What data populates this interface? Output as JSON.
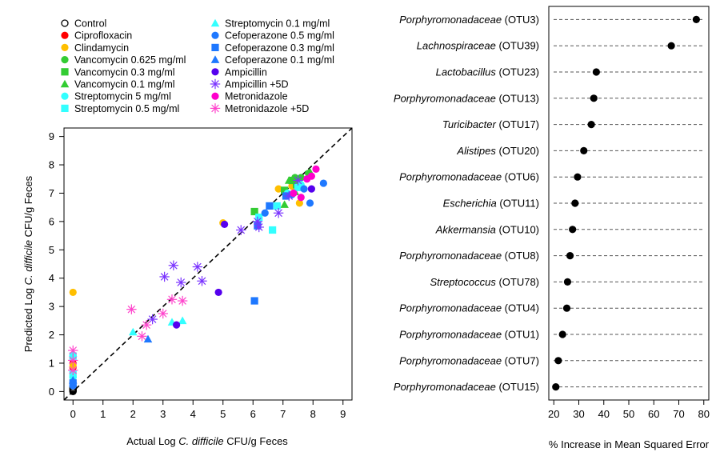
{
  "chart_data": [
    {
      "type": "scatter",
      "xlabel": {
        "pre": "Actual Log ",
        "italic": "C. difficile",
        "post": " CFU/g Feces"
      },
      "ylabel": {
        "pre": "Predicted Log ",
        "italic": "C. difficile",
        "post": " CFU/g Feces"
      },
      "xlim": [
        -0.3,
        9.3
      ],
      "ylim": [
        -0.3,
        9.3
      ],
      "xticks": [
        "0",
        "1",
        "2",
        "3",
        "4",
        "5",
        "6",
        "7",
        "8",
        "9"
      ],
      "yticks": [
        "0",
        "1",
        "2",
        "3",
        "4",
        "5",
        "6",
        "7",
        "8",
        "9"
      ],
      "reference_line": "y = x (dashed)",
      "legend_position": "top-left, outside plot, two columns",
      "series": [
        {
          "name": "Control",
          "color": "#000000",
          "marker": "open-circle",
          "points": [
            [
              0,
              0
            ],
            [
              0,
              0.05
            ],
            [
              0,
              0.1
            ],
            [
              0,
              0.15
            ],
            [
              0,
              0.02
            ],
            [
              0,
              0.08
            ]
          ]
        },
        {
          "name": "Ciprofloxacin",
          "color": "#ff0000",
          "marker": "circle",
          "points": [
            [
              0,
              1.0
            ],
            [
              0,
              0.85
            ]
          ]
        },
        {
          "name": "Clindamycin",
          "color": "#ffbf00",
          "marker": "circle",
          "points": [
            [
              0,
              3.5
            ],
            [
              5,
              5.95
            ],
            [
              6.85,
              7.15
            ],
            [
              7.3,
              7.25
            ],
            [
              7.55,
              6.65
            ],
            [
              0,
              0.9
            ]
          ]
        },
        {
          "name": "Vancomycin 0.625 mg/ml",
          "color": "#33cc33",
          "marker": "circle",
          "points": [
            [
              7.4,
              7.55
            ],
            [
              7.6,
              7.55
            ],
            [
              7.85,
              7.7
            ],
            [
              7.5,
              7.35
            ]
          ]
        },
        {
          "name": "Vancomycin 0.3 mg/ml",
          "color": "#33cc33",
          "marker": "square",
          "points": [
            [
              6.05,
              6.35
            ],
            [
              7.05,
              7.1
            ],
            [
              7.3,
              7.45
            ],
            [
              7.45,
              7.3
            ]
          ]
        },
        {
          "name": "Vancomycin 0.1 mg/ml",
          "color": "#33cc33",
          "marker": "triangle",
          "points": [
            [
              7.05,
              6.6
            ],
            [
              7.4,
              7.05
            ],
            [
              7.9,
              7.75
            ],
            [
              7.2,
              7.45
            ]
          ]
        },
        {
          "name": "Streptomycin 5 mg/ml",
          "color": "#33ffff",
          "marker": "circle",
          "points": [
            [
              7.15,
              7.0
            ],
            [
              7.6,
              7.3
            ],
            [
              0,
              0.5
            ]
          ]
        },
        {
          "name": "Streptomycin 0.5 mg/ml",
          "color": "#33ffff",
          "marker": "square",
          "points": [
            [
              6.2,
              6.15
            ],
            [
              6.65,
              5.7
            ],
            [
              7.5,
              7.2
            ],
            [
              6.8,
              6.55
            ],
            [
              0,
              1.25
            ],
            [
              0,
              0.6
            ]
          ]
        },
        {
          "name": "Streptomycin 0.1 mg/ml",
          "color": "#33ffff",
          "marker": "triangle",
          "points": [
            [
              2.0,
              2.1
            ],
            [
              3.3,
              2.45
            ],
            [
              3.65,
              2.5
            ],
            [
              0,
              1.35
            ]
          ]
        },
        {
          "name": "Cefoperazone 0.5 mg/ml",
          "color": "#1e78ff",
          "marker": "circle",
          "points": [
            [
              8.35,
              7.35
            ],
            [
              7.9,
              6.65
            ],
            [
              7.3,
              6.95
            ],
            [
              6.4,
              6.3
            ],
            [
              7.7,
              7.15
            ],
            [
              0,
              0.2
            ]
          ]
        },
        {
          "name": "Cefoperazone 0.3 mg/ml",
          "color": "#1e78ff",
          "marker": "square",
          "points": [
            [
              6.05,
              3.2
            ],
            [
              6.15,
              5.85
            ],
            [
              6.55,
              6.55
            ],
            [
              7.1,
              6.9
            ],
            [
              0,
              0.3
            ]
          ]
        },
        {
          "name": "Cefoperazone 0.1 mg/ml",
          "color": "#1e78ff",
          "marker": "triangle",
          "points": [
            [
              2.5,
              1.85
            ],
            [
              0,
              0.4
            ]
          ]
        },
        {
          "name": "Ampicillin",
          "color": "#5500ee",
          "marker": "circle",
          "points": [
            [
              3.45,
              2.35
            ],
            [
              4.85,
              3.5
            ],
            [
              5.05,
              5.9
            ],
            [
              7.95,
              7.15
            ]
          ]
        },
        {
          "name": "Ampicillin +5D",
          "color": "#7a33ff",
          "marker": "asterisk",
          "points": [
            [
              2.65,
              2.55
            ],
            [
              3.05,
              4.05
            ],
            [
              3.35,
              4.45
            ],
            [
              3.6,
              3.85
            ],
            [
              4.15,
              4.4
            ],
            [
              4.3,
              3.9
            ],
            [
              5.6,
              5.7
            ],
            [
              6.15,
              6.0
            ],
            [
              6.2,
              5.8
            ],
            [
              6.85,
              6.3
            ],
            [
              7.2,
              6.9
            ],
            [
              7.5,
              7.45
            ]
          ]
        },
        {
          "name": "Metronidazole",
          "color": "#ff00cc",
          "marker": "circle",
          "points": [
            [
              7.6,
              6.85
            ],
            [
              7.95,
              7.6
            ],
            [
              8.1,
              7.85
            ],
            [
              7.35,
              7.0
            ],
            [
              7.8,
              7.5
            ]
          ]
        },
        {
          "name": "Metronidazole +5D",
          "color": "#ff44cc",
          "marker": "asterisk",
          "points": [
            [
              1.95,
              2.9
            ],
            [
              2.3,
              1.95
            ],
            [
              2.45,
              2.35
            ],
            [
              3.0,
              2.75
            ],
            [
              3.3,
              3.25
            ],
            [
              3.65,
              3.2
            ],
            [
              0,
              1.45
            ],
            [
              0,
              1.1
            ],
            [
              0,
              0.75
            ]
          ]
        }
      ]
    },
    {
      "type": "dot",
      "xlabel": "% Increase in Mean Squared Error",
      "xlim": [
        18,
        82
      ],
      "xticks": [
        "20",
        "30",
        "40",
        "50",
        "60",
        "70",
        "80"
      ],
      "categories": [
        {
          "italic": "Porphyromonadaceae",
          "suffix": " (OTU3)",
          "value": 77
        },
        {
          "italic": "Lachnospiraceae",
          "suffix": " (OTU39)",
          "value": 67
        },
        {
          "italic": "Lactobacillus",
          "suffix": " (OTU23)",
          "value": 37
        },
        {
          "italic": "Porphyromonadaceae",
          "suffix": " (OTU13)",
          "value": 36
        },
        {
          "italic": "Turicibacter",
          "suffix": " (OTU17)",
          "value": 35
        },
        {
          "italic": "Alistipes",
          "suffix": " (OTU20)",
          "value": 32
        },
        {
          "italic": "Porphyromonadaceae",
          "suffix": " (OTU6)",
          "value": 29.5
        },
        {
          "italic": "Escherichia",
          "suffix": " (OTU11)",
          "value": 28.5
        },
        {
          "italic": "Akkermansia",
          "suffix": " (OTU10)",
          "value": 27.5
        },
        {
          "italic": "Porphyromonadaceae",
          "suffix": " (OTU8)",
          "value": 26.5
        },
        {
          "italic": "Streptococcus",
          "suffix": " (OTU78)",
          "value": 25.5
        },
        {
          "italic": "Porphyromonadaceae",
          "suffix": " (OTU4)",
          "value": 25.2
        },
        {
          "italic": "Porphyromonadaceae",
          "suffix": " (OTU1)",
          "value": 23.5
        },
        {
          "italic": "Porphyromonadaceae",
          "suffix": " (OTU7)",
          "value": 21.8
        },
        {
          "italic": "Porphyromonadaceae",
          "suffix": " (OTU15)",
          "value": 20.8
        }
      ]
    }
  ]
}
